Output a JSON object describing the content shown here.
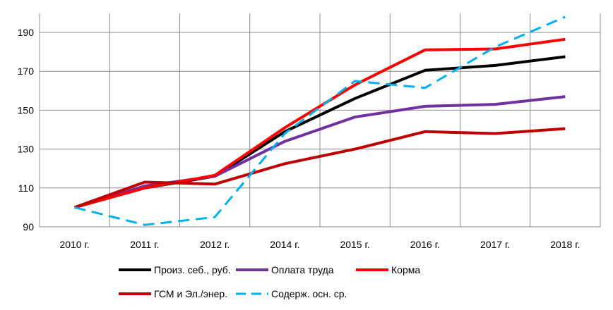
{
  "chart_data": {
    "type": "line",
    "categories": [
      "2010 г.",
      "2011 г.",
      "2012 г.",
      "2014 г.",
      "2015 г.",
      "2016 г.",
      "2017 г.",
      "2018 г."
    ],
    "ylim": [
      90,
      190
    ],
    "yticks": [
      90,
      110,
      130,
      150,
      170,
      190
    ],
    "grid": true,
    "legend_position": "bottom",
    "series": [
      {
        "name": "Произ. себ., руб.",
        "color": "#000000",
        "dash": "solid",
        "values": [
          100,
          110,
          116,
          139,
          156,
          170.5,
          173,
          177.5
        ]
      },
      {
        "name": "Оплата труда",
        "color": "#7030a0",
        "dash": "solid",
        "values": [
          100,
          111,
          116,
          134,
          146.5,
          152,
          153,
          157
        ]
      },
      {
        "name": "Корма",
        "color": "#ff0000",
        "dash": "solid",
        "values": [
          100,
          110,
          116.5,
          141,
          163,
          181,
          181.5,
          186.5
        ]
      },
      {
        "name": "ГСМ и Эл./энер.",
        "color": "#c00000",
        "dash": "solid",
        "values": [
          100,
          113,
          112,
          122.5,
          130,
          139,
          138,
          140.5
        ]
      },
      {
        "name": "Содерж. осн. ср.",
        "color": "#00b0f0",
        "dash": "dashed",
        "values": [
          100,
          91,
          95,
          138,
          165,
          161.5,
          182.5,
          198
        ]
      }
    ]
  }
}
